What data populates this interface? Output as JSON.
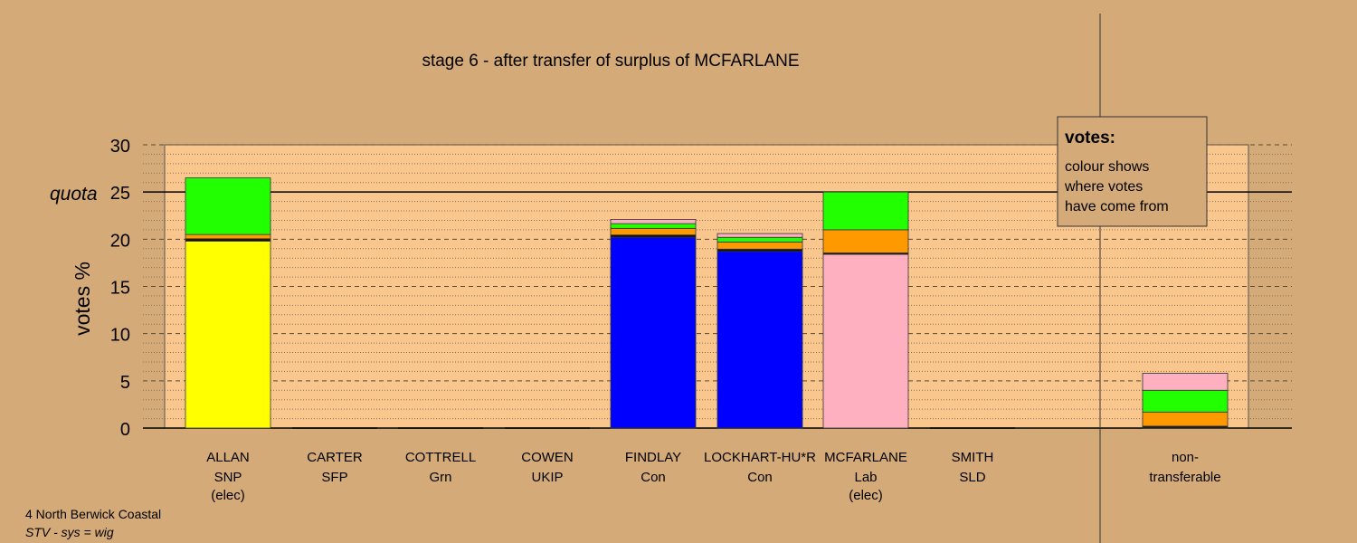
{
  "chart_data": {
    "type": "bar",
    "stacked": true,
    "title": "stage 6 - after transfer of surplus of MCFARLANE",
    "ylabel": "votes %",
    "ylim": [
      0,
      30
    ],
    "yticks": [
      0,
      5,
      10,
      15,
      20,
      25,
      30
    ],
    "quota": {
      "label": "quota",
      "value": 25
    },
    "candidates": [
      {
        "name": "ALLAN",
        "party": "SNP",
        "status": "(elec)",
        "segments": [
          {
            "value": 19.8,
            "color": "#ffff00"
          },
          {
            "value": 0.25,
            "color": "#111111"
          },
          {
            "value": 0.45,
            "color": "#ff9900"
          },
          {
            "value": 6.0,
            "color": "#22ff00"
          }
        ]
      },
      {
        "name": "CARTER",
        "party": "SFP",
        "status": "",
        "segments": []
      },
      {
        "name": "COTTRELL",
        "party": "Grn",
        "status": "",
        "segments": []
      },
      {
        "name": "COWEN",
        "party": "UKIP",
        "status": "",
        "segments": []
      },
      {
        "name": "FINDLAY",
        "party": "Con",
        "status": "",
        "segments": [
          {
            "value": 20.2,
            "color": "#0000ff"
          },
          {
            "value": 0.25,
            "color": "#111111"
          },
          {
            "value": 0.7,
            "color": "#ff9900"
          },
          {
            "value": 0.5,
            "color": "#22ff00"
          },
          {
            "value": 0.45,
            "color": "#ffb0c0"
          }
        ]
      },
      {
        "name": "LOCKHART-HU*R",
        "party": "Con",
        "status": "",
        "segments": [
          {
            "value": 18.7,
            "color": "#0000ff"
          },
          {
            "value": 0.25,
            "color": "#111111"
          },
          {
            "value": 0.75,
            "color": "#ff9900"
          },
          {
            "value": 0.5,
            "color": "#22ff00"
          },
          {
            "value": 0.4,
            "color": "#ffb0c0"
          }
        ]
      },
      {
        "name": "MCFARLANE",
        "party": "Lab",
        "status": "(elec)",
        "segments": [
          {
            "value": 18.4,
            "color": "#ffb0c0"
          },
          {
            "value": 0.15,
            "color": "#111111"
          },
          {
            "value": 2.45,
            "color": "#ff9900"
          },
          {
            "value": 4.0,
            "color": "#22ff00"
          }
        ]
      },
      {
        "name": "SMITH",
        "party": "SLD",
        "status": "",
        "segments": []
      }
    ],
    "nontransferable": {
      "label_line1": "non-",
      "label_line2": "transferable",
      "segments": [
        {
          "value": 0.2,
          "color": "#111111"
        },
        {
          "value": 1.5,
          "color": "#ff9900"
        },
        {
          "value": 2.3,
          "color": "#22ff00"
        },
        {
          "value": 1.8,
          "color": "#ffb0c0"
        }
      ]
    },
    "legend": {
      "title": "votes:",
      "lines": [
        "colour shows",
        "where votes",
        "have come from"
      ],
      "placement": "top-right"
    },
    "colors": {
      "background": "#d4aa78",
      "plot_background": "#f9c68e"
    }
  },
  "footer": {
    "line1": "4 North Berwick Coastal",
    "line2": "STV - sys = wig"
  }
}
